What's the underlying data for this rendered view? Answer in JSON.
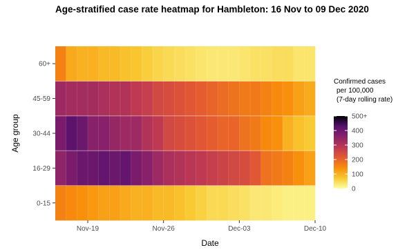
{
  "title": "Age-stratified case rate heatmap for Hambleton: 16 Nov to 09 Dec 2020",
  "colors": {
    "scale": [
      "#fcffa4",
      "#f9c932",
      "#f98e09",
      "#e45a31",
      "#bc3754",
      "#8a226a",
      "#57106e",
      "#000004"
    ]
  },
  "chart_data": {
    "type": "heatmap",
    "title": "Age-stratified case rate heatmap for Hambleton: 16 Nov to 09 Dec 2020",
    "xlabel": "Date",
    "ylabel": "Age group",
    "x_ticks": [
      "Nov-19",
      "Nov-26",
      "Dec-03",
      "Dec-10"
    ],
    "dates": [
      "2020-11-16",
      "2020-11-17",
      "2020-11-18",
      "2020-11-19",
      "2020-11-20",
      "2020-11-21",
      "2020-11-22",
      "2020-11-23",
      "2020-11-24",
      "2020-11-25",
      "2020-11-26",
      "2020-11-27",
      "2020-11-28",
      "2020-11-29",
      "2020-11-30",
      "2020-12-01",
      "2020-12-02",
      "2020-12-03",
      "2020-12-04",
      "2020-12-05",
      "2020-12-06",
      "2020-12-07",
      "2020-12-08",
      "2020-12-09"
    ],
    "age_groups": [
      "0-15",
      "16-29",
      "30-44",
      "45-59",
      "60+"
    ],
    "values": {
      "60+": [
        160,
        110,
        100,
        100,
        90,
        90,
        80,
        75,
        65,
        55,
        50,
        45,
        40,
        35,
        30,
        30,
        30,
        35,
        40,
        40,
        45,
        45,
        35,
        35
      ],
      "45-59": [
        330,
        320,
        320,
        320,
        310,
        300,
        300,
        280,
        270,
        250,
        240,
        230,
        220,
        210,
        200,
        190,
        180,
        170,
        170,
        160,
        150,
        140,
        120,
        110
      ],
      "30-44": [
        380,
        420,
        400,
        360,
        360,
        340,
        330,
        330,
        300,
        280,
        250,
        240,
        230,
        220,
        210,
        200,
        200,
        180,
        170,
        150,
        140,
        100,
        80,
        70
      ],
      "16-29": [
        350,
        380,
        400,
        400,
        410,
        400,
        410,
        380,
        360,
        330,
        310,
        300,
        290,
        280,
        270,
        260,
        250,
        240,
        220,
        180,
        170,
        160,
        140,
        120
      ],
      "0-15": [
        160,
        150,
        140,
        130,
        120,
        120,
        110,
        100,
        100,
        90,
        90,
        80,
        70,
        60,
        50,
        50,
        45,
        40,
        30,
        30,
        25,
        20,
        20,
        20
      ]
    },
    "legend": {
      "title_lines": [
        "Confirmed cases",
        "per 100,000",
        "(7-day rolling rate)"
      ],
      "ticks": [
        "0",
        "100",
        "200",
        "300",
        "400",
        "500+"
      ],
      "range": [
        0,
        500
      ]
    }
  }
}
